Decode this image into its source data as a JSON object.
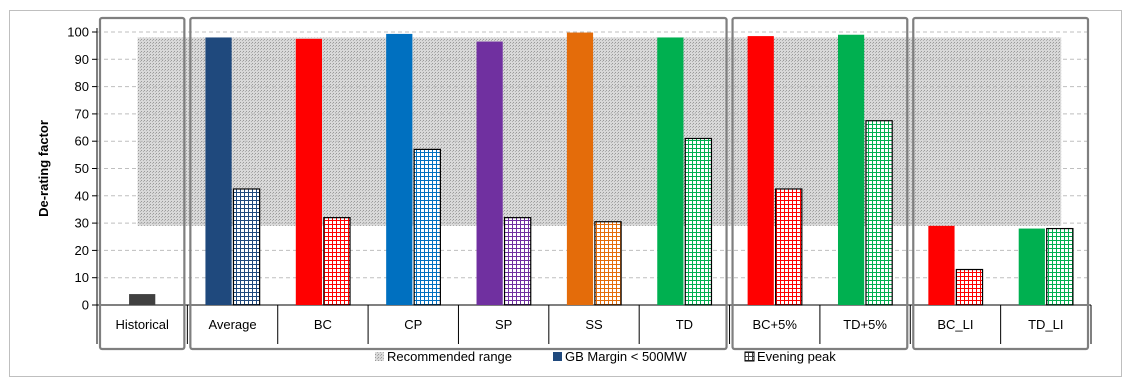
{
  "chart_data": {
    "type": "bar",
    "ylabel": "De-rating factor",
    "ylim": [
      0,
      100
    ],
    "yticks": [
      0,
      10,
      20,
      30,
      40,
      50,
      60,
      70,
      80,
      90,
      100
    ],
    "grid": "horizontal dashed",
    "recommended_range": [
      29,
      98
    ],
    "categories": [
      "Historical",
      "Average",
      "BC",
      "CP",
      "SP",
      "SS",
      "TD",
      "BC+5%",
      "TD+5%",
      "BC_LI",
      "TD_LI"
    ],
    "category_colors": [
      "#404040",
      "#1F497D",
      "#FF0000",
      "#0070C0",
      "#7030A0",
      "#E46C0A",
      "#00B050",
      "#FF0000",
      "#00B050",
      "#FF0000",
      "#00B050"
    ],
    "groups": [
      {
        "categories": [
          "Historical"
        ]
      },
      {
        "categories": [
          "Average",
          "BC",
          "CP",
          "SP",
          "SS",
          "TD"
        ]
      },
      {
        "categories": [
          "BC+5%",
          "TD+5%"
        ]
      },
      {
        "categories": [
          "BC_LI",
          "TD_LI"
        ]
      }
    ],
    "series": [
      {
        "name": "GB Margin < 500MW",
        "values": [
          4,
          98,
          97.5,
          99.3,
          96.5,
          99.8,
          98,
          98.5,
          99,
          29,
          28
        ]
      },
      {
        "name": "Evening peak",
        "values": [
          null,
          42.5,
          32,
          57,
          32,
          30.5,
          61,
          42.5,
          67.5,
          13,
          28
        ]
      }
    ],
    "legend": {
      "position": "bottom",
      "items": [
        {
          "label": "Recommended range",
          "style": "hatched-gray"
        },
        {
          "label": "GB Margin < 500MW",
          "style": "solid",
          "color": "#1F497D"
        },
        {
          "label": "Evening peak",
          "style": "grid-pattern"
        }
      ]
    }
  }
}
